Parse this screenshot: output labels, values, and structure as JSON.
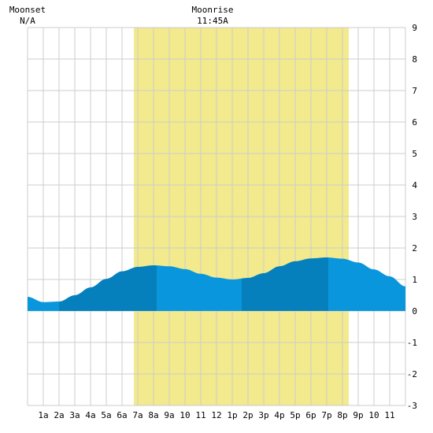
{
  "chart_data": {
    "type": "area",
    "title": "",
    "xlabel": "",
    "ylabel": "",
    "x_tick_labels": [
      "1a",
      "2a",
      "3a",
      "4a",
      "5a",
      "6a",
      "7a",
      "8a",
      "9a",
      "10",
      "11",
      "12",
      "1p",
      "2p",
      "3p",
      "4p",
      "5p",
      "6p",
      "7p",
      "8p",
      "9p",
      "10",
      "11"
    ],
    "y_ticks": [
      -3,
      -2,
      -1,
      0,
      1,
      2,
      3,
      4,
      5,
      6,
      7,
      8,
      9
    ],
    "xlim_hours": [
      0,
      24
    ],
    "ylim": [
      -3,
      9
    ],
    "grid": true,
    "daylight": {
      "start_hour": 6.75,
      "end_hour": 20.4,
      "color": "#f2ea8c"
    },
    "moon_labels": [
      {
        "name": "Moonset",
        "time": "N/A",
        "hour": 0
      },
      {
        "name": "Moonrise",
        "time": "11:45A",
        "hour": 11.75
      }
    ],
    "series": [
      {
        "hours": [
          0,
          1,
          2,
          3,
          4,
          5,
          6,
          7,
          8,
          9,
          10,
          11,
          12,
          13,
          14,
          15,
          16,
          17,
          18,
          19,
          20,
          21,
          22,
          23,
          24
        ],
        "values": [
          0.45,
          0.28,
          0.3,
          0.5,
          0.75,
          1.02,
          1.26,
          1.4,
          1.45,
          1.42,
          1.33,
          1.18,
          1.06,
          1.0,
          1.05,
          1.2,
          1.42,
          1.58,
          1.67,
          1.7,
          1.66,
          1.54,
          1.32,
          1.1,
          0.78
        ]
      }
    ],
    "tide_band_boundaries_hours": [
      2.0,
      8.2,
      13.6,
      19.1
    ],
    "colors": {
      "light": "#0a96dc",
      "dark": "#0680bd",
      "grid": "#cccccc"
    }
  }
}
